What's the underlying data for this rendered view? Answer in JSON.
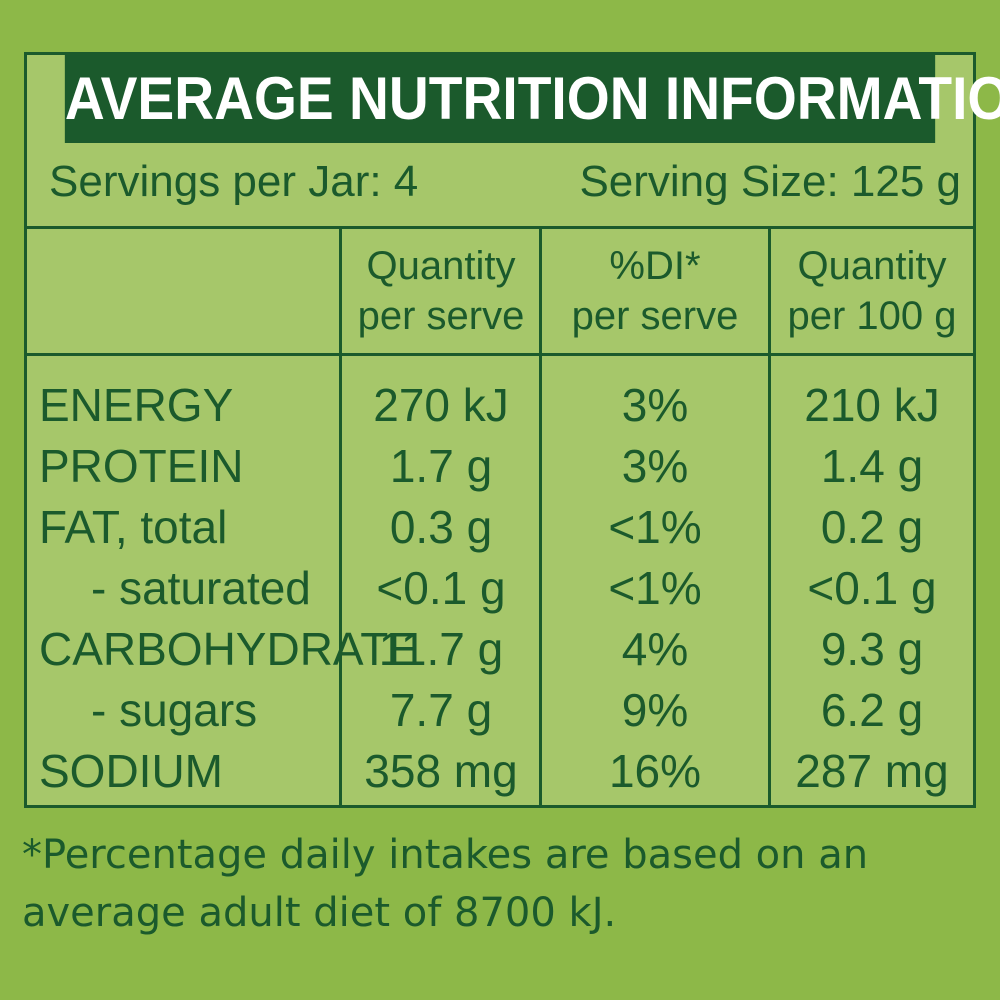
{
  "title": "AVERAGE NUTRITION INFORMATION",
  "servings_per_jar": "Servings per Jar: 4",
  "serving_size": "Serving Size: 125 g",
  "headers": {
    "qty_serve_1": "Quantity",
    "qty_serve_2": "per serve",
    "di_1": "%DI*",
    "di_2": "per serve",
    "qty_100_1": "Quantity",
    "qty_100_2": "per 100 g"
  },
  "rows": [
    {
      "name": "ENERGY",
      "per_serve": "270 kJ",
      "di": "3%",
      "per_100g": "210 kJ"
    },
    {
      "name": "PROTEIN",
      "per_serve": "1.7 g",
      "di": "3%",
      "per_100g": "1.4 g"
    },
    {
      "name": "FAT, total",
      "per_serve": "0.3 g",
      "di": "<1%",
      "per_100g": "0.2 g"
    },
    {
      "name": "- saturated",
      "per_serve": "<0.1 g",
      "di": "<1%",
      "per_100g": "<0.1 g"
    },
    {
      "name": "CARBOHYDRATE",
      "per_serve": "11.7 g",
      "di": "4%",
      "per_100g": "9.3 g"
    },
    {
      "name": "- sugars",
      "per_serve": "7.7 g",
      "di": "9%",
      "per_100g": "6.2 g"
    },
    {
      "name": "SODIUM",
      "per_serve": "358 mg",
      "di": "16%",
      "per_100g": "287 mg"
    }
  ],
  "footnote_line1": "*Percentage daily intakes are based on an",
  "footnote_line2": "average adult diet of 8700 kJ.",
  "colors": {
    "background": "#8db848",
    "panel": "#a6c76a",
    "dark_green": "#1b5a2c"
  }
}
